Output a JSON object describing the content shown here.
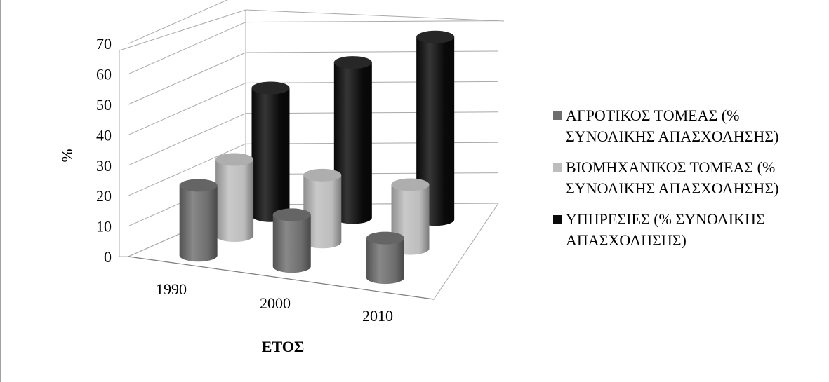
{
  "chart_data": {
    "type": "bar",
    "style": "3d-cylinder",
    "categories": [
      "1990",
      "2000",
      "2010"
    ],
    "series": [
      {
        "name": "ΑΓΡΟΤΙΚΟΣ ΤΟΜΕΑΣ (% ΣΥΝΟΛΙΚΗΣ ΑΠΑΣΧΟΛΗΣΗΣ)",
        "values": [
          23,
          17,
          13
        ],
        "color": "#6e6e6e"
      },
      {
        "name": "ΒΙΟΜΗΧΑΝΙΚΟΣ ΤΟΜΕΑΣ (% ΣΥΝΟΛΙΚΗΣ ΑΠΑΣΧΟΛΗΣΗΣ)",
        "values": [
          25,
          22,
          21
        ],
        "color": "#bdbdbd"
      },
      {
        "name": "ΥΠΗΡΕΣΙΕΣ (% ΣΥΝΟΛΙΚΗΣ ΑΠΑΣΧΟΛΗΣΗΣ)",
        "values": [
          42,
          51,
          60
        ],
        "color": "#0a0a0a"
      }
    ],
    "yticks": [
      0,
      10,
      20,
      30,
      40,
      50,
      60,
      70
    ],
    "ylim": [
      0,
      70
    ],
    "ylabel": "%",
    "xlabel": "ΕΤΟΣ",
    "grid": true,
    "legend_position": "right"
  }
}
